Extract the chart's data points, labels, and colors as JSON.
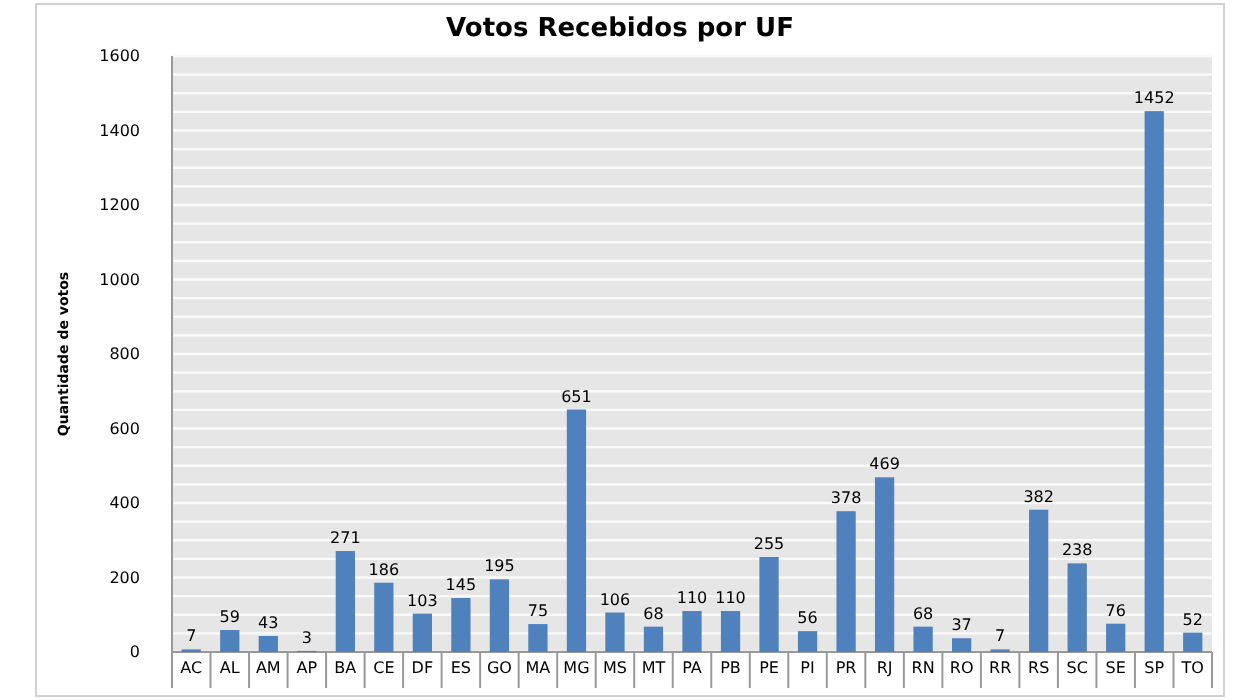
{
  "chart_data": {
    "type": "bar",
    "title": "Votos Recebidos por UF",
    "ylabel": "Quantidade de votos",
    "categories": [
      "AC",
      "AL",
      "AM",
      "AP",
      "BA",
      "CE",
      "DF",
      "ES",
      "GO",
      "MA",
      "MG",
      "MS",
      "MT",
      "PA",
      "PB",
      "PE",
      "PI",
      "PR",
      "RJ",
      "RN",
      "RO",
      "RR",
      "RS",
      "SC",
      "SE",
      "SP",
      "TO"
    ],
    "values": [
      7,
      59,
      43,
      3,
      271,
      186,
      103,
      145,
      195,
      75,
      651,
      106,
      68,
      110,
      110,
      255,
      56,
      378,
      469,
      68,
      37,
      7,
      382,
      238,
      76,
      1452,
      52
    ],
    "color": "#4f81bd",
    "data_labels": true,
    "ylim": [
      0,
      1600
    ],
    "yticks": [
      0,
      {
        "value": 50,
        "label": null
      },
      {
        "value": 100,
        "label": null
      },
      {
        "value": 150,
        "label": null
      },
      200,
      {
        "value": 250,
        "label": null
      },
      {
        "value": 300,
        "label": null
      },
      {
        "value": 350,
        "label": null
      },
      400,
      {
        "value": 450,
        "label": null
      },
      {
        "value": 500,
        "label": null
      },
      {
        "value": 550,
        "label": null
      },
      600,
      {
        "value": 650,
        "label": null
      },
      {
        "value": 700,
        "label": null
      },
      {
        "value": 750,
        "label": null
      },
      800,
      {
        "value": 850,
        "label": null
      },
      {
        "value": 900,
        "label": null
      },
      {
        "value": 950,
        "label": null
      },
      1000,
      {
        "value": 1050,
        "label": null
      },
      {
        "value": 1100,
        "label": null
      },
      {
        "value": 1150,
        "label": null
      },
      1200,
      {
        "value": 1250,
        "label": null
      },
      {
        "value": 1300,
        "label": null
      },
      {
        "value": 1350,
        "label": null
      },
      1400,
      {
        "value": 1450,
        "label": null
      },
      {
        "value": 1500,
        "label": null
      },
      {
        "value": 1550,
        "label": null
      },
      1600
    ],
    "grid": "y"
  }
}
